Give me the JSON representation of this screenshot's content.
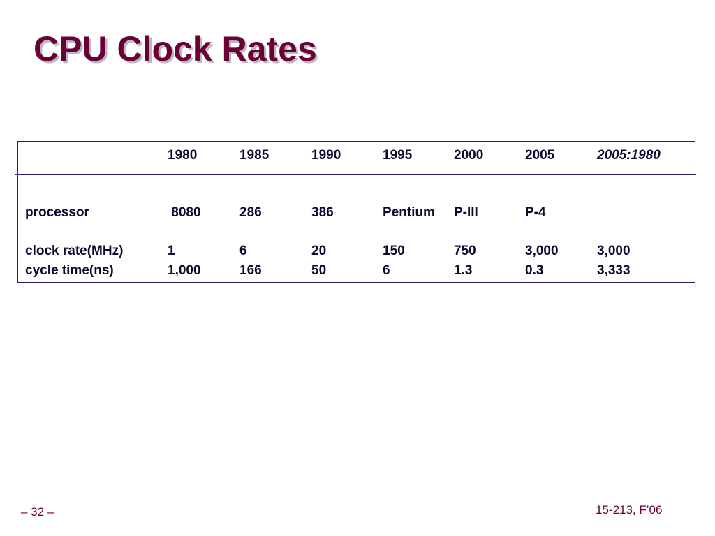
{
  "slide": {
    "title": "CPU Clock Rates"
  },
  "table": {
    "header": {
      "blank": "",
      "years": [
        "1980",
        "1985",
        "1990",
        "1995",
        "2000",
        "2005"
      ],
      "ratio": "2005:1980"
    },
    "rows": [
      {
        "label": "processor",
        "values": [
          " 8080",
          "286",
          "386",
          "Pentium",
          "P-III",
          "P-4"
        ],
        "ratio": ""
      },
      {
        "label": "clock rate(MHz)",
        "values": [
          "1",
          "6",
          "20",
          "150",
          "750",
          "3,000"
        ],
        "ratio": "3,000"
      },
      {
        "label": "cycle time(ns)",
        "values": [
          "1,000",
          "166",
          "50",
          "6",
          "1.3",
          "0.3"
        ],
        "ratio": "3,333"
      }
    ]
  },
  "footer": {
    "page": "– 32 –",
    "course": "15-213, F’06"
  }
}
